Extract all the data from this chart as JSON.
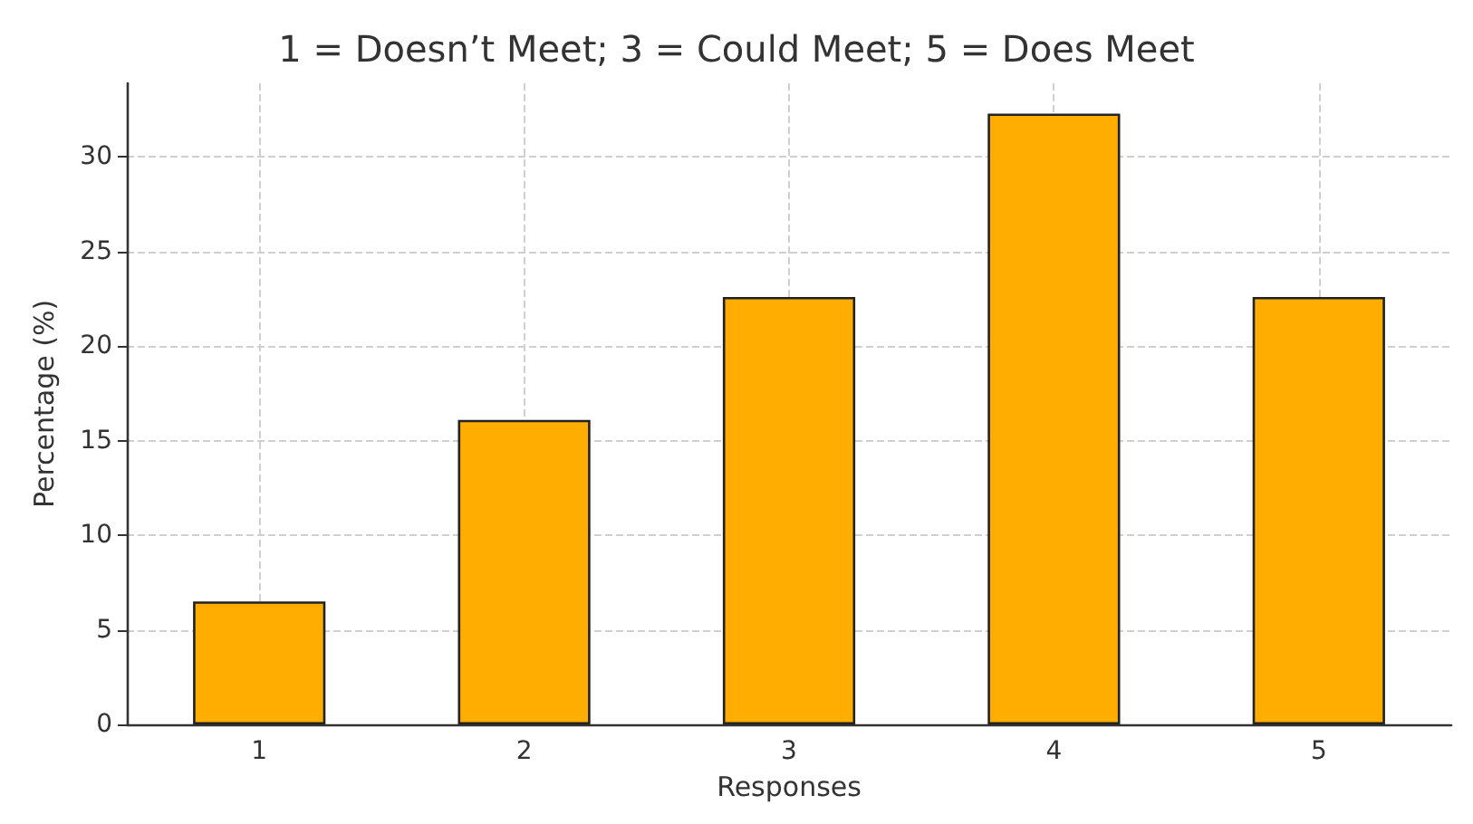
{
  "chart_data": {
    "type": "bar",
    "title": "1 = Doesn’t Meet; 3 = Could Meet; 5 = Does Meet",
    "xlabel": "Responses",
    "ylabel": "Percentage (%)",
    "categories": [
      "1",
      "2",
      "3",
      "4",
      "5"
    ],
    "values": [
      6.5,
      16.1,
      22.6,
      32.3,
      22.6
    ],
    "color": "#ffad00",
    "ylim": [
      0,
      33.9
    ],
    "yticks": [
      0,
      5,
      10,
      15,
      20,
      25,
      30
    ],
    "grid": true
  }
}
